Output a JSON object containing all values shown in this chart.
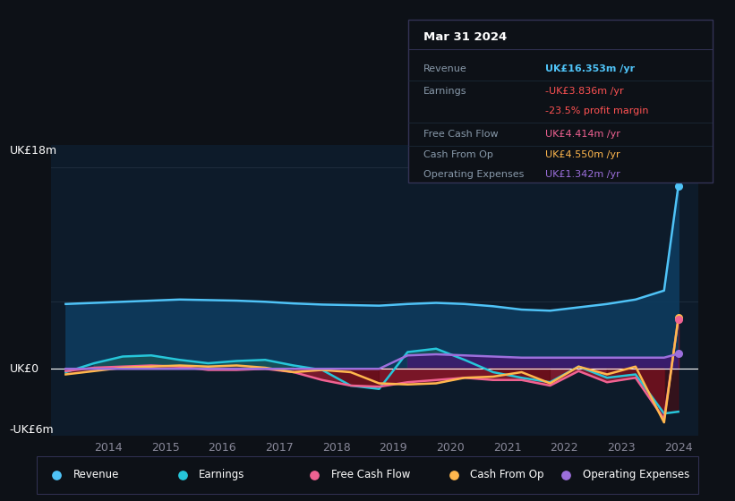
{
  "bg_color": "#0d1117",
  "plot_bg_color": "#0d1b2a",
  "grid_color": "#1e2d3d",
  "ylabel_top": "UK£18m",
  "ylabel_zero": "UK£0",
  "ylabel_bottom": "-UK£6m",
  "ylim": [
    -6,
    20
  ],
  "years": [
    2013.25,
    2013.75,
    2014.25,
    2014.75,
    2015.25,
    2015.75,
    2016.25,
    2016.75,
    2017.25,
    2017.75,
    2018.25,
    2018.75,
    2019.25,
    2019.75,
    2020.25,
    2020.75,
    2021.25,
    2021.75,
    2022.25,
    2022.75,
    2023.25,
    2023.75,
    2024.0
  ],
  "revenue": [
    5.8,
    5.9,
    6.0,
    6.1,
    6.2,
    6.15,
    6.1,
    6.0,
    5.85,
    5.75,
    5.7,
    5.65,
    5.8,
    5.9,
    5.8,
    5.6,
    5.3,
    5.2,
    5.5,
    5.8,
    6.2,
    7.0,
    16.353
  ],
  "earnings": [
    -0.3,
    0.5,
    1.1,
    1.2,
    0.8,
    0.5,
    0.7,
    0.8,
    0.3,
    -0.1,
    -1.5,
    -1.8,
    1.5,
    1.8,
    0.8,
    -0.3,
    -0.8,
    -1.2,
    0.2,
    -0.8,
    -0.5,
    -4.0,
    -3.836
  ],
  "free_cash_flow": [
    -0.2,
    0.1,
    0.2,
    0.3,
    0.2,
    -0.1,
    -0.1,
    0.0,
    -0.3,
    -1.0,
    -1.5,
    -1.6,
    -1.2,
    -1.0,
    -0.8,
    -1.0,
    -1.0,
    -1.5,
    -0.2,
    -1.2,
    -0.8,
    -4.5,
    4.414
  ],
  "cash_from_op": [
    -0.5,
    -0.2,
    0.1,
    0.2,
    0.3,
    0.2,
    0.3,
    0.1,
    -0.3,
    -0.1,
    -0.3,
    -1.3,
    -1.4,
    -1.3,
    -0.8,
    -0.7,
    -0.3,
    -1.3,
    0.2,
    -0.5,
    0.2,
    -4.8,
    4.55
  ],
  "operating_expenses": [
    0.0,
    0.0,
    0.0,
    0.0,
    0.0,
    0.0,
    0.0,
    0.0,
    0.0,
    0.0,
    0.0,
    0.0,
    1.2,
    1.3,
    1.2,
    1.1,
    1.0,
    1.0,
    1.0,
    1.0,
    1.0,
    1.0,
    1.342
  ],
  "revenue_color": "#4fc3f7",
  "revenue_fill_color": "#0d3b5e",
  "earnings_color": "#26c6da",
  "free_cash_flow_color": "#f06292",
  "cash_from_op_color": "#ffb74d",
  "operating_expenses_color": "#9c6fdc",
  "operating_expenses_fill_color": "#3d1a6e",
  "zero_line_color": "#ffffff",
  "xtick_years": [
    2014,
    2015,
    2016,
    2017,
    2018,
    2019,
    2020,
    2021,
    2022,
    2023,
    2024
  ],
  "xlim": [
    2013.0,
    2024.35
  ],
  "tooltip": {
    "title": "Mar 31 2024",
    "rows": [
      {
        "label": "Revenue",
        "value": "UK£16.353m /yr",
        "value_color": "#4fc3f7"
      },
      {
        "label": "Earnings",
        "value": "-UK£3.836m /yr",
        "value_color": "#ff5252"
      },
      {
        "label": "",
        "value": "-23.5% profit margin",
        "value_color": "#ff5252"
      },
      {
        "label": "Free Cash Flow",
        "value": "UK£4.414m /yr",
        "value_color": "#f06292"
      },
      {
        "label": "Cash From Op",
        "value": "UK£4.550m /yr",
        "value_color": "#ffb74d"
      },
      {
        "label": "Operating Expenses",
        "value": "UK£1.342m /yr",
        "value_color": "#9c6fdc"
      }
    ]
  },
  "legend_items": [
    {
      "label": "Revenue",
      "color": "#4fc3f7"
    },
    {
      "label": "Earnings",
      "color": "#26c6da"
    },
    {
      "label": "Free Cash Flow",
      "color": "#f06292"
    },
    {
      "label": "Cash From Op",
      "color": "#ffb74d"
    },
    {
      "label": "Operating Expenses",
      "color": "#9c6fdc"
    }
  ]
}
